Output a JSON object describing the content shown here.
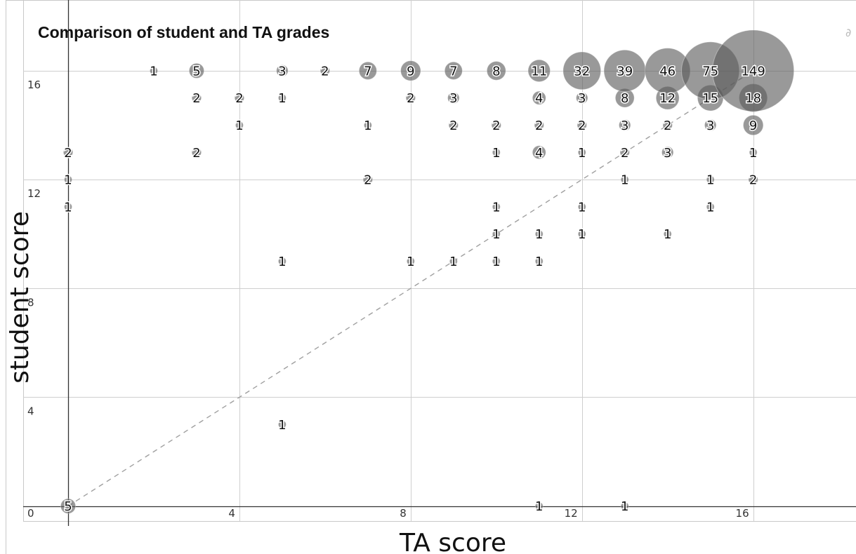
{
  "chart_data": {
    "type": "scatter",
    "title": "Comparison of student and TA grades",
    "xlabel": "TA score",
    "ylabel": "student score",
    "xlim": [
      -1.05,
      18.4
    ],
    "ylim": [
      -0.55,
      18.6
    ],
    "xticks": [
      "0",
      "4",
      "8",
      "12",
      "16"
    ],
    "yticks": [
      "0",
      "4",
      "8",
      "12",
      "16"
    ],
    "grid": true,
    "reference_line": "y = x",
    "corner_glyph": "∂",
    "colors": {
      "bubble_fill": "#5a5a5a",
      "grid": "#cfcfcf",
      "axis": "#333333",
      "reference": "#a0a0a0"
    },
    "points": [
      {
        "x": 2,
        "y": 16,
        "count": 1
      },
      {
        "x": 3,
        "y": 16,
        "count": 5
      },
      {
        "x": 5,
        "y": 16,
        "count": 3
      },
      {
        "x": 6,
        "y": 16,
        "count": 2
      },
      {
        "x": 7,
        "y": 16,
        "count": 7
      },
      {
        "x": 8,
        "y": 16,
        "count": 9
      },
      {
        "x": 9,
        "y": 16,
        "count": 7
      },
      {
        "x": 10,
        "y": 16,
        "count": 8
      },
      {
        "x": 11,
        "y": 16,
        "count": 11
      },
      {
        "x": 12,
        "y": 16,
        "count": 32
      },
      {
        "x": 13,
        "y": 16,
        "count": 39
      },
      {
        "x": 14,
        "y": 16,
        "count": 46
      },
      {
        "x": 15,
        "y": 16,
        "count": 75
      },
      {
        "x": 16,
        "y": 16,
        "count": 149
      },
      {
        "x": 3,
        "y": 15,
        "count": 2
      },
      {
        "x": 4,
        "y": 15,
        "count": 2
      },
      {
        "x": 5,
        "y": 15,
        "count": 1
      },
      {
        "x": 8,
        "y": 15,
        "count": 2
      },
      {
        "x": 9,
        "y": 15,
        "count": 3
      },
      {
        "x": 11,
        "y": 15,
        "count": 4
      },
      {
        "x": 12,
        "y": 15,
        "count": 3
      },
      {
        "x": 13,
        "y": 15,
        "count": 8
      },
      {
        "x": 14,
        "y": 15,
        "count": 12
      },
      {
        "x": 15,
        "y": 15,
        "count": 15
      },
      {
        "x": 16,
        "y": 15,
        "count": 18
      },
      {
        "x": 4,
        "y": 14,
        "count": 1
      },
      {
        "x": 7,
        "y": 14,
        "count": 1
      },
      {
        "x": 9,
        "y": 14,
        "count": 2
      },
      {
        "x": 10,
        "y": 14,
        "count": 2
      },
      {
        "x": 11,
        "y": 14,
        "count": 2
      },
      {
        "x": 12,
        "y": 14,
        "count": 2
      },
      {
        "x": 13,
        "y": 14,
        "count": 3
      },
      {
        "x": 14,
        "y": 14,
        "count": 2
      },
      {
        "x": 15,
        "y": 14,
        "count": 3
      },
      {
        "x": 16,
        "y": 14,
        "count": 9
      },
      {
        "x": 0,
        "y": 13,
        "count": 2
      },
      {
        "x": 3,
        "y": 13,
        "count": 2
      },
      {
        "x": 10,
        "y": 13,
        "count": 1
      },
      {
        "x": 11,
        "y": 13,
        "count": 4
      },
      {
        "x": 12,
        "y": 13,
        "count": 1
      },
      {
        "x": 13,
        "y": 13,
        "count": 2
      },
      {
        "x": 14,
        "y": 13,
        "count": 3
      },
      {
        "x": 16,
        "y": 13,
        "count": 1
      },
      {
        "x": 0,
        "y": 12,
        "count": 1
      },
      {
        "x": 7,
        "y": 12,
        "count": 2
      },
      {
        "x": 13,
        "y": 12,
        "count": 1
      },
      {
        "x": 15,
        "y": 12,
        "count": 1
      },
      {
        "x": 16,
        "y": 12,
        "count": 2
      },
      {
        "x": 0,
        "y": 11,
        "count": 1
      },
      {
        "x": 10,
        "y": 11,
        "count": 1
      },
      {
        "x": 12,
        "y": 11,
        "count": 1
      },
      {
        "x": 15,
        "y": 11,
        "count": 1
      },
      {
        "x": 10,
        "y": 10,
        "count": 1
      },
      {
        "x": 11,
        "y": 10,
        "count": 1
      },
      {
        "x": 12,
        "y": 10,
        "count": 1
      },
      {
        "x": 14,
        "y": 10,
        "count": 1
      },
      {
        "x": 5,
        "y": 9,
        "count": 1
      },
      {
        "x": 8,
        "y": 9,
        "count": 1
      },
      {
        "x": 9,
        "y": 9,
        "count": 1
      },
      {
        "x": 10,
        "y": 9,
        "count": 1
      },
      {
        "x": 11,
        "y": 9,
        "count": 1
      },
      {
        "x": 5,
        "y": 3,
        "count": 1
      },
      {
        "x": 0,
        "y": 0,
        "count": 5
      },
      {
        "x": 11,
        "y": 0,
        "count": 1
      },
      {
        "x": 13,
        "y": 0,
        "count": 1
      }
    ]
  }
}
